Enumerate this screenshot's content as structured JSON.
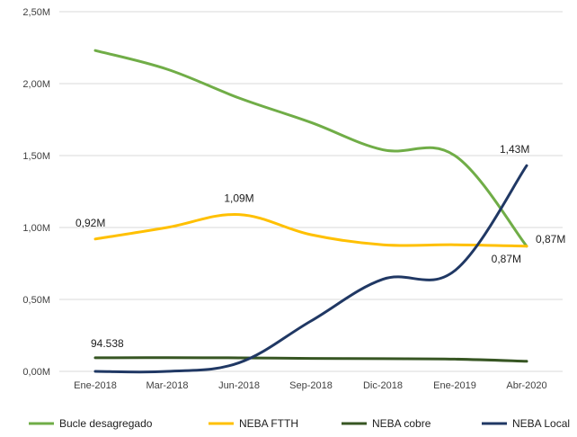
{
  "chart_data": {
    "type": "line",
    "categories": [
      "Ene-2018",
      "Mar-2018",
      "Jun-2018",
      "Sep-2018",
      "Dic-2018",
      "Ene-2019",
      "Abr-2020"
    ],
    "ylim": [
      0,
      2.5
    ],
    "y_ticks": [
      {
        "value": 0,
        "label": "0,00M"
      },
      {
        "value": 0.5,
        "label": "0,50M"
      },
      {
        "value": 1.0,
        "label": "1,00M"
      },
      {
        "value": 1.5,
        "label": "1,50M"
      },
      {
        "value": 2.0,
        "label": "2,00M"
      },
      {
        "value": 2.5,
        "label": "2,50M"
      }
    ],
    "grid": "horizontal",
    "legend_position": "bottom",
    "series": [
      {
        "name": "Bucle desagregado",
        "color": "#70ad47",
        "values": [
          2.23,
          2.1,
          1.9,
          1.73,
          1.54,
          1.5,
          0.87
        ]
      },
      {
        "name": "NEBA FTTH",
        "color": "#ffc000",
        "values": [
          0.92,
          1.0,
          1.09,
          0.95,
          0.88,
          0.88,
          0.87
        ]
      },
      {
        "name": "NEBA cobre",
        "color": "#375623",
        "values": [
          0.094538,
          0.095,
          0.094,
          0.09,
          0.088,
          0.085,
          0.07
        ]
      },
      {
        "name": "NEBA Local",
        "color": "#203864",
        "values": [
          0.0,
          0.0,
          0.06,
          0.35,
          0.64,
          0.7,
          1.43
        ]
      }
    ],
    "annotations": [
      {
        "text": "0,92M",
        "series": 1,
        "index": 0
      },
      {
        "text": "1,09M",
        "series": 1,
        "index": 2
      },
      {
        "text": "0,87M",
        "series": 1,
        "index": 6
      },
      {
        "text": "0,87M",
        "series": 0,
        "index": 6
      },
      {
        "text": "1,43M",
        "series": 3,
        "index": 6
      },
      {
        "text": "94.538",
        "series": 2,
        "index": 0
      }
    ]
  }
}
